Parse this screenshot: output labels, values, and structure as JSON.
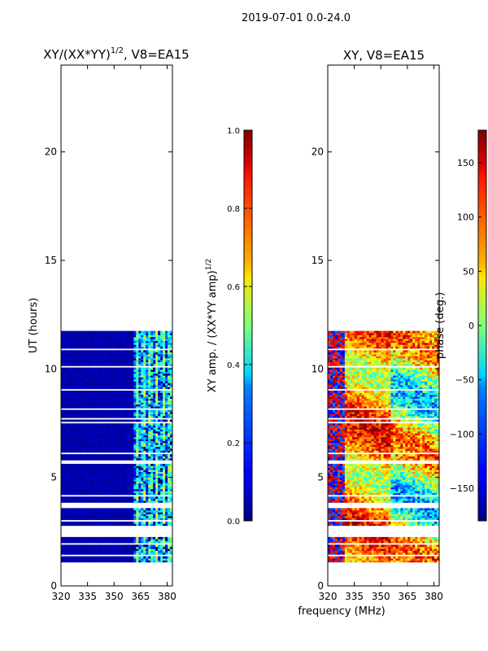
{
  "suptitle": "2019-07-01 0.0-24.0",
  "shared_xlabel": "frequency (MHz)",
  "chart_data": [
    {
      "type": "heatmap",
      "title_main": "XY/(XX*YY)",
      "title_sup": "1/2",
      "title_tail": ", V8=EA15",
      "xlabel": "",
      "ylabel": "UT (hours)",
      "xlim": [
        320,
        383
      ],
      "ylim": [
        0,
        24
      ],
      "xticks": [
        320,
        335,
        350,
        365,
        380
      ],
      "yticks": [
        0,
        5,
        10,
        15,
        20
      ],
      "data_ut_range": [
        1.1,
        11.75
      ],
      "data_gaps_ut": [
        [
          1.35,
          1.42
        ],
        [
          1.88,
          1.95
        ],
        [
          2.25,
          2.75
        ],
        [
          2.95,
          3.02
        ],
        [
          3.55,
          3.85
        ],
        [
          4.15,
          4.22
        ],
        [
          4.55,
          4.6
        ],
        [
          5.65,
          5.78
        ],
        [
          6.05,
          6.12
        ],
        [
          6.65,
          6.72
        ],
        [
          7.45,
          7.55
        ],
        [
          7.65,
          7.8
        ],
        [
          8.15,
          8.2
        ],
        [
          9.0,
          9.08
        ],
        [
          9.6,
          9.66
        ],
        [
          10.05,
          10.12
        ],
        [
          10.85,
          10.92
        ]
      ],
      "colorbar": {
        "label_main": "XY amp. / (XX*YY amp)",
        "label_sup": "1/2",
        "range": [
          0.0,
          1.0
        ],
        "ticks": [
          "0.0",
          "0.2",
          "0.4",
          "0.6",
          "0.8",
          "1.0"
        ]
      }
    },
    {
      "type": "heatmap",
      "title": "XY, V8=EA15",
      "xlabel": "frequency (MHz)",
      "ylabel": "",
      "xlim": [
        320,
        383
      ],
      "ylim": [
        0,
        24
      ],
      "xticks": [
        320,
        335,
        350,
        365,
        380
      ],
      "yticks": [
        0,
        5,
        10,
        15,
        20
      ],
      "data_ut_range": [
        1.1,
        11.75
      ],
      "colorbar": {
        "label": "phase (deg.)",
        "range": [
          -180,
          180
        ],
        "ticks": [
          "−150",
          "−100",
          "−50",
          "0",
          "50",
          "100",
          "150"
        ]
      }
    }
  ]
}
